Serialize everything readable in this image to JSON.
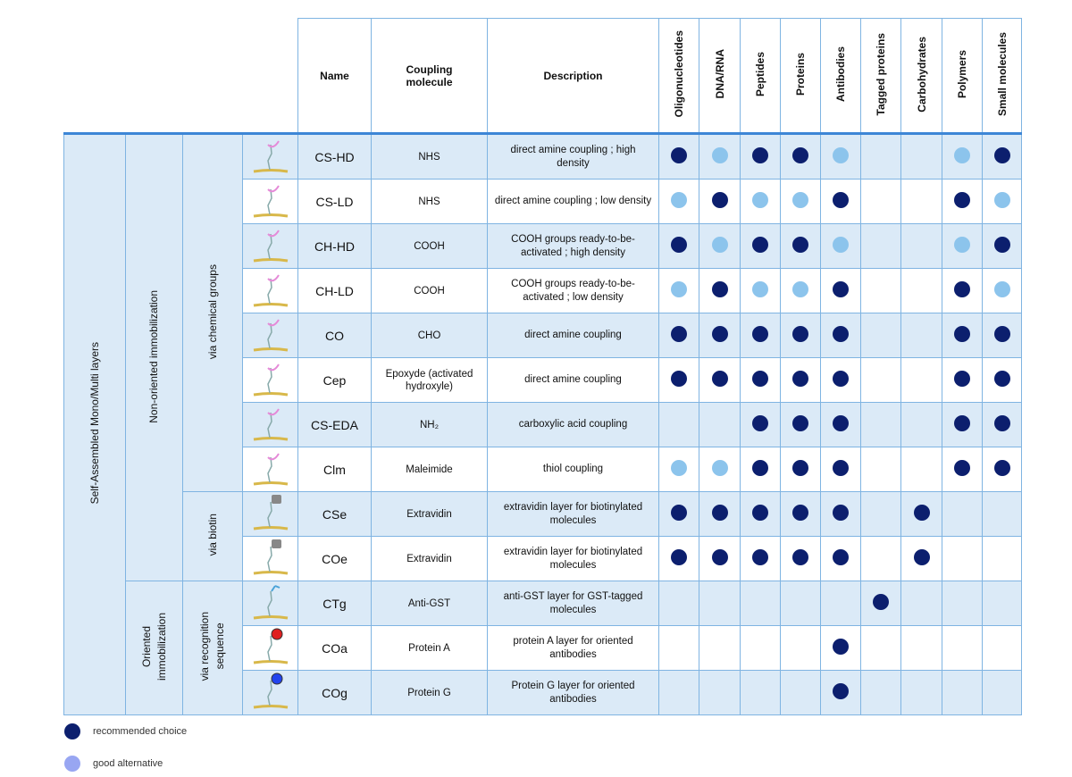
{
  "header": {
    "name": "Name",
    "coupling": "Coupling molecule",
    "description": "Description",
    "targets": [
      "Oligonucleotides",
      "DNA/RNA",
      "Peptides",
      "Proteins",
      "Antibodies",
      "Tagged proteins",
      "Carbohydrates",
      "Polymers",
      "Small molecules"
    ]
  },
  "groups": {
    "level1": "Self-Assembled Mono/Multi layers",
    "non_oriented": "Non-oriented immobilization",
    "oriented": "Oriented\nimmobilization",
    "chemical": "via chemical groups",
    "biotin": "via biotin",
    "recognition": "via recognition\nsequence"
  },
  "colors": {
    "recommended": "#0c1f6e",
    "alternative": "#8cc4ec",
    "row_alt": "#dbeaf7",
    "grid": "#7fb4e2"
  },
  "rows": [
    {
      "name": "CS-HD",
      "coupling": "NHS",
      "description": "direct amine coupling ; high density",
      "icon": "nhs-linker-icon",
      "values": [
        2,
        1,
        2,
        2,
        1,
        0,
        0,
        1,
        2
      ]
    },
    {
      "name": "CS-LD",
      "coupling": "NHS",
      "description": "direct amine coupling ; low density",
      "icon": "nhs-linker-icon",
      "values": [
        1,
        2,
        1,
        1,
        2,
        0,
        0,
        2,
        1
      ]
    },
    {
      "name": "CH-HD",
      "coupling": "COOH",
      "description": "COOH groups ready-to-be-activated ; high density",
      "icon": "cooh-linker-icon",
      "values": [
        2,
        1,
        2,
        2,
        1,
        0,
        0,
        1,
        2
      ]
    },
    {
      "name": "CH-LD",
      "coupling": "COOH",
      "description": "COOH groups ready-to-be-activated ; low density",
      "icon": "cooh-linker-icon",
      "values": [
        1,
        2,
        1,
        1,
        2,
        0,
        0,
        2,
        1
      ]
    },
    {
      "name": "CO",
      "coupling": "CHO",
      "description": "direct amine coupling",
      "icon": "cho-linker-icon",
      "values": [
        2,
        2,
        2,
        2,
        2,
        0,
        0,
        2,
        2
      ]
    },
    {
      "name": "Cep",
      "coupling": "Epoxyde (activated hydroxyle)",
      "description": "direct amine coupling",
      "icon": "epoxy-linker-icon",
      "values": [
        2,
        2,
        2,
        2,
        2,
        0,
        0,
        2,
        2
      ]
    },
    {
      "name": "CS-EDA",
      "coupling": "NH₂",
      "description": "carboxylic acid coupling",
      "icon": "amine-linker-icon",
      "values": [
        0,
        0,
        2,
        2,
        2,
        0,
        0,
        2,
        2
      ]
    },
    {
      "name": "Clm",
      "coupling": "Maleimide",
      "description": "thiol coupling",
      "icon": "maleimide-linker-icon",
      "values": [
        1,
        1,
        2,
        2,
        2,
        0,
        0,
        2,
        2
      ]
    },
    {
      "name": "CSe",
      "coupling": "Extravidin",
      "description": "extravidin layer for biotinylated molecules",
      "icon": "extravidin-linker-icon",
      "values": [
        2,
        2,
        2,
        2,
        2,
        0,
        2,
        0,
        0
      ]
    },
    {
      "name": "COe",
      "coupling": "Extravidin",
      "description": "extravidin layer for biotinylated molecules",
      "icon": "extravidin-linker-icon",
      "values": [
        2,
        2,
        2,
        2,
        2,
        0,
        2,
        0,
        0
      ]
    },
    {
      "name": "CTg",
      "coupling": "Anti-GST",
      "description": "anti-GST layer for GST-tagged molecules",
      "icon": "anti-gst-linker-icon",
      "values": [
        0,
        0,
        0,
        0,
        0,
        2,
        0,
        0,
        0
      ]
    },
    {
      "name": "COa",
      "coupling": "Protein A",
      "description": "protein A layer for oriented antibodies",
      "icon": "protein-a-linker-icon",
      "values": [
        0,
        0,
        0,
        0,
        2,
        0,
        0,
        0,
        0
      ]
    },
    {
      "name": "COg",
      "coupling": "Protein G",
      "description": "Protein G layer for oriented antibodies",
      "icon": "protein-g-linker-icon",
      "values": [
        0,
        0,
        0,
        0,
        2,
        0,
        0,
        0,
        0
      ]
    }
  ],
  "legend": {
    "recommended": "recommended choice",
    "alternative": "good alternative"
  }
}
